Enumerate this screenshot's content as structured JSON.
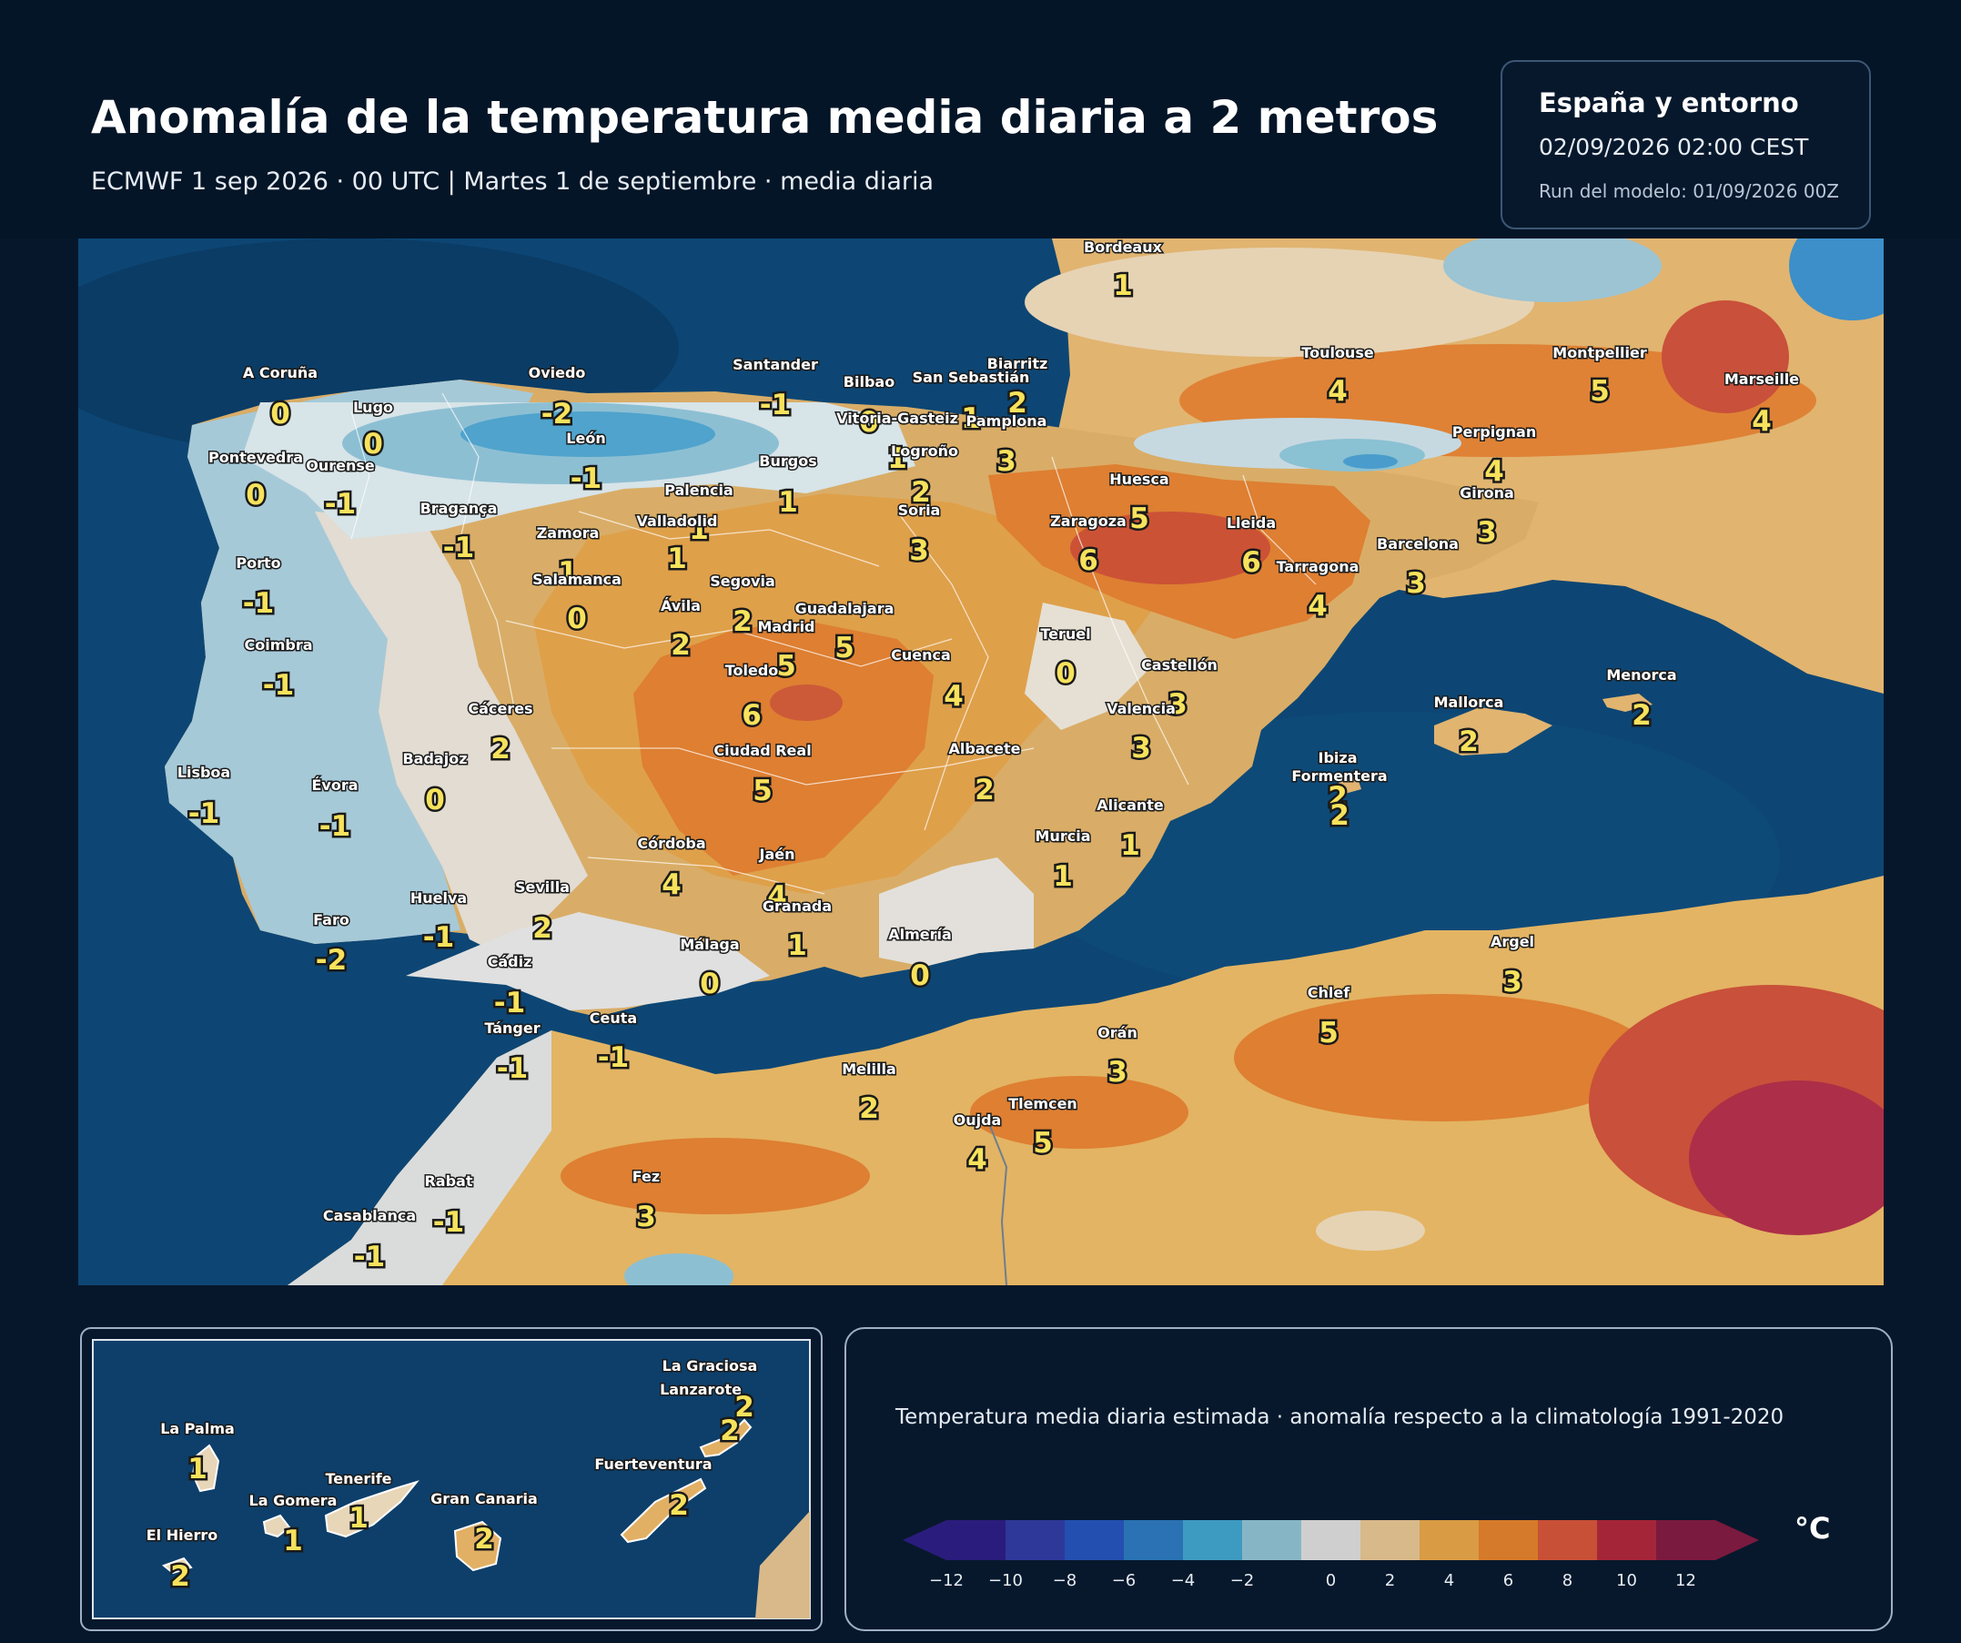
{
  "header": {
    "title": "Anomalía de la temperatura media diaria a 2 metros",
    "subtitle": "ECMWF 1 sep 2026 · 00 UTC  |  Martes 1 de septiembre · media diaria"
  },
  "info_box": {
    "region": "España y entorno",
    "valid_time": "02/09/2026  02:00 CEST",
    "model_run": "Run del modelo: 01/09/2026 00Z"
  },
  "map": {
    "units": "°C",
    "points": [
      {
        "name": "Bordeaux",
        "value": "1"
      },
      {
        "name": "Toulouse",
        "value": "4"
      },
      {
        "name": "Montpellier",
        "value": "5"
      },
      {
        "name": "Marseille",
        "value": "4"
      },
      {
        "name": "Perpignan",
        "value": "4"
      },
      {
        "name": "Biarritz",
        "value": "2"
      },
      {
        "name": "A Coruña",
        "value": "0"
      },
      {
        "name": "Lugo",
        "value": "0"
      },
      {
        "name": "Oviedo",
        "value": "-2"
      },
      {
        "name": "Santander",
        "value": "-1"
      },
      {
        "name": "Bilbao",
        "value": "0"
      },
      {
        "name": "San Sebastián",
        "value": "1"
      },
      {
        "name": "Vitoria-Gasteiz",
        "value": "1"
      },
      {
        "name": "Pamplona",
        "value": "3"
      },
      {
        "name": "Logroño",
        "value": "2"
      },
      {
        "name": "Pontevedra",
        "value": "0"
      },
      {
        "name": "Ourense",
        "value": "-1"
      },
      {
        "name": "León",
        "value": "-1"
      },
      {
        "name": "Burgos",
        "value": "1"
      },
      {
        "name": "Palencia",
        "value": "1"
      },
      {
        "name": "Bragança",
        "value": "-1"
      },
      {
        "name": "Valladolid",
        "value": "1"
      },
      {
        "name": "Zamora",
        "value": "1"
      },
      {
        "name": "Soria",
        "value": "3"
      },
      {
        "name": "Huesca",
        "value": "5"
      },
      {
        "name": "Girona",
        "value": "3"
      },
      {
        "name": "Zaragoza",
        "value": "6"
      },
      {
        "name": "Lleida",
        "value": "6"
      },
      {
        "name": "Barcelona",
        "value": "3"
      },
      {
        "name": "Tarragona",
        "value": "4"
      },
      {
        "name": "Porto",
        "value": "-1"
      },
      {
        "name": "Salamanca",
        "value": "0"
      },
      {
        "name": "Segovia",
        "value": "2"
      },
      {
        "name": "Ávila",
        "value": "2"
      },
      {
        "name": "Guadalajara",
        "value": "5"
      },
      {
        "name": "Madrid",
        "value": "5"
      },
      {
        "name": "Coimbra",
        "value": "-1"
      },
      {
        "name": "Teruel",
        "value": "0"
      },
      {
        "name": "Cuenca",
        "value": "4"
      },
      {
        "name": "Toledo",
        "value": "6"
      },
      {
        "name": "Castellón",
        "value": "3"
      },
      {
        "name": "Cáceres",
        "value": "2"
      },
      {
        "name": "Valencia",
        "value": "3"
      },
      {
        "name": "Menorca",
        "value": "2"
      },
      {
        "name": "Mallorca",
        "value": "2"
      },
      {
        "name": "Badajoz",
        "value": "0"
      },
      {
        "name": "Ciudad Real",
        "value": "5"
      },
      {
        "name": "Albacete",
        "value": "2"
      },
      {
        "name": "Lisboa",
        "value": "-1"
      },
      {
        "name": "Évora",
        "value": "-1"
      },
      {
        "name": "Ibiza",
        "value": "2"
      },
      {
        "name": "Formentera",
        "value": "2"
      },
      {
        "name": "Alicante",
        "value": "1"
      },
      {
        "name": "Murcia",
        "value": "1"
      },
      {
        "name": "Córdoba",
        "value": "4"
      },
      {
        "name": "Jaén",
        "value": "4"
      },
      {
        "name": "Huelva",
        "value": "-1"
      },
      {
        "name": "Sevilla",
        "value": "2"
      },
      {
        "name": "Granada",
        "value": "1"
      },
      {
        "name": "Faro",
        "value": "-2"
      },
      {
        "name": "Almería",
        "value": "0"
      },
      {
        "name": "Málaga",
        "value": "0"
      },
      {
        "name": "Cádiz",
        "value": "-1"
      },
      {
        "name": "Argel",
        "value": "3"
      },
      {
        "name": "Chlef",
        "value": "5"
      },
      {
        "name": "Tánger",
        "value": "-1"
      },
      {
        "name": "Ceuta",
        "value": "-1"
      },
      {
        "name": "Orán",
        "value": "3"
      },
      {
        "name": "Melilla",
        "value": "2"
      },
      {
        "name": "Tlemcen",
        "value": "5"
      },
      {
        "name": "Oujda",
        "value": "4"
      },
      {
        "name": "Fez",
        "value": "3"
      },
      {
        "name": "Rabat",
        "value": "-1"
      },
      {
        "name": "Casablanca",
        "value": "-1"
      }
    ]
  },
  "canarias": {
    "points": [
      {
        "name": "La Graciosa",
        "value": "2"
      },
      {
        "name": "Lanzarote",
        "value": "2"
      },
      {
        "name": "La Palma",
        "value": "1"
      },
      {
        "name": "Tenerife",
        "value": "1"
      },
      {
        "name": "Fuerteventura",
        "value": "2"
      },
      {
        "name": "La Gomera",
        "value": "1"
      },
      {
        "name": "Gran Canaria",
        "value": "2"
      },
      {
        "name": "El Hierro",
        "value": "2"
      }
    ]
  },
  "legend": {
    "caption": "Temperatura media diaria estimada · anomalía respecto a la climatología 1991-2020",
    "unit": "°C",
    "ticks": [
      "−12",
      "−10",
      "−8",
      "−6",
      "−4",
      "−2",
      "0",
      "2",
      "4",
      "6",
      "8",
      "10",
      "12"
    ],
    "colors": [
      "#2a1c7c",
      "#2e3899",
      "#2350b0",
      "#2a72b3",
      "#3d9ac0",
      "#86b6c6",
      "#cfcfcf",
      "#d8b98a",
      "#d99b44",
      "#d57a2a",
      "#c85036",
      "#a52538",
      "#7a1a3e"
    ]
  }
}
